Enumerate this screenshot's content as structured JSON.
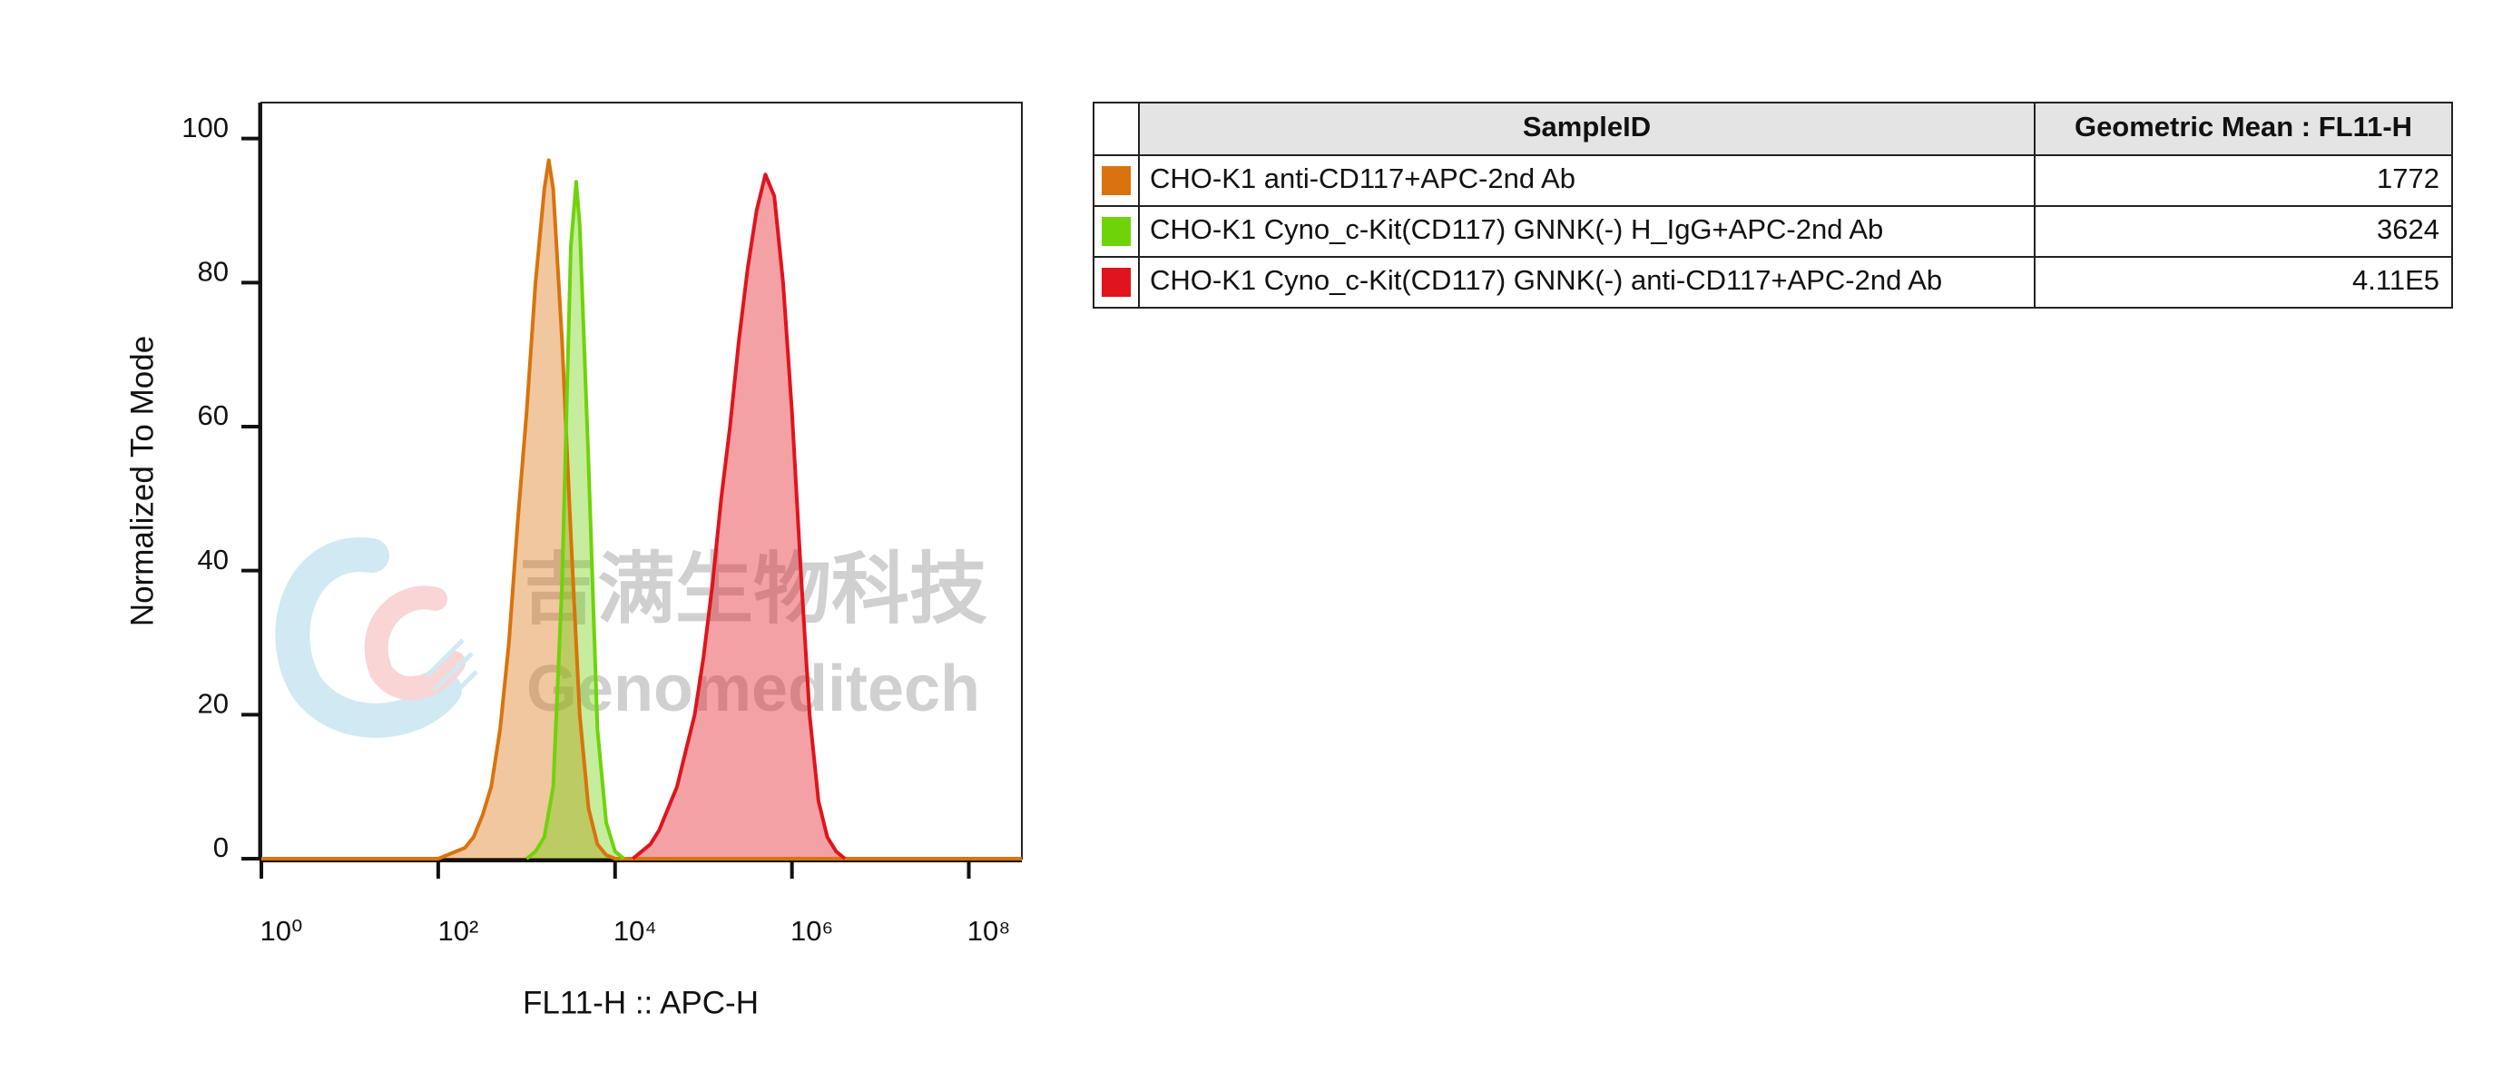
{
  "chart_data": {
    "type": "area",
    "x_label": "FL11-H :: APC-H",
    "y_label": "Normalized To Mode",
    "xscale": "log",
    "xlim": [
      1,
      398107171
    ],
    "ylim": [
      0,
      105
    ],
    "xticks": [
      {
        "value": 1,
        "label": "10⁰"
      },
      {
        "value": 100,
        "label": "10²"
      },
      {
        "value": 10000,
        "label": "10⁴"
      },
      {
        "value": 1000000,
        "label": "10⁶"
      },
      {
        "value": 100000000,
        "label": "10⁸"
      }
    ],
    "yticks": [
      0,
      20,
      40,
      60,
      80,
      100
    ],
    "fill_opacity": 0.4,
    "series": [
      {
        "name": "CHO-K1 anti-CD117+APC-2nd Ab",
        "color": "#d9730d",
        "x": [
          1,
          100,
          158,
          200,
          251,
          316,
          398,
          501,
          631,
          794,
          1000,
          1259,
          1585,
          1778,
          1995,
          2512,
          3162,
          3981,
          5012,
          6310,
          7943,
          10000,
          398107171
        ],
        "values": [
          0,
          0,
          1,
          1.5,
          3,
          6,
          10,
          18,
          30,
          47,
          62,
          80,
          93,
          97,
          93,
          72,
          45,
          20,
          7,
          2,
          0.5,
          0,
          0
        ]
      },
      {
        "name": "CHO-K1 Cyno_c-Kit(CD117) GNNK(-) H_IgG+APC-2nd Ab",
        "color": "#6fd30a",
        "x": [
          1000,
          1259,
          1585,
          1995,
          2512,
          3162,
          3631,
          3981,
          5012,
          6310,
          7943,
          10000,
          12589
        ],
        "values": [
          0,
          1,
          3,
          10,
          38,
          85,
          94,
          88,
          55,
          18,
          5,
          1,
          0
        ]
      },
      {
        "name": "CHO-K1 Cyno_c-Kit(CD117) GNNK(-) anti-CD117+APC-2nd Ab",
        "color": "#e0141e",
        "x": [
          15849,
          19953,
          25119,
          31623,
          39811,
          50119,
          63096,
          79433,
          100000,
          125893,
          158489,
          199526,
          251189,
          316228,
          398107,
          501187,
          630957,
          794328,
          1000000,
          1258925,
          1584893,
          1995262,
          2511886,
          3162278,
          3981072
        ],
        "values": [
          0,
          1,
          2,
          4,
          7,
          10,
          15,
          20,
          28,
          38,
          50,
          60,
          72,
          82,
          90,
          95,
          92,
          80,
          62,
          40,
          20,
          8,
          3,
          1,
          0
        ]
      }
    ]
  },
  "table": {
    "headers": [
      "SampleID",
      "Geometric Mean : FL11-H"
    ],
    "values": [
      "1772",
      "3624",
      "4.11E5"
    ]
  },
  "watermark": {
    "cn": "吉满生物科技",
    "en": "Genomeditech"
  }
}
